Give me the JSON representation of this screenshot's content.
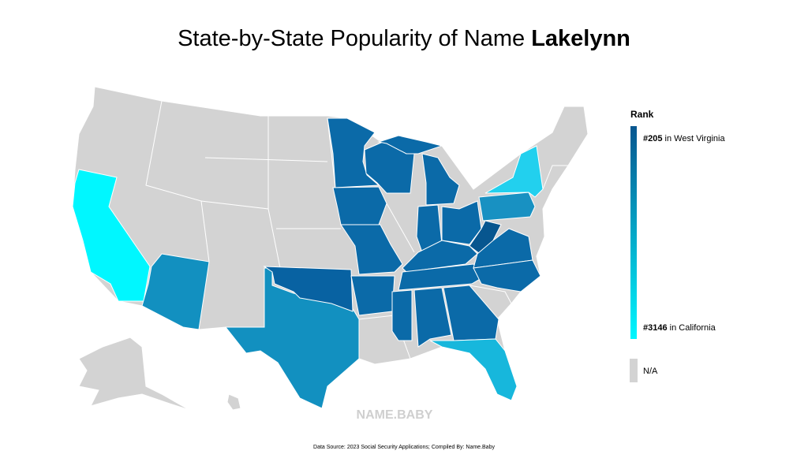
{
  "title": {
    "prefix": "State-by-State Popularity of Name",
    "name": "Lakelynn"
  },
  "legend": {
    "heading": "Rank",
    "top": {
      "rank": "#205",
      "place": "in West Virginia",
      "color": "#07568f"
    },
    "bottom": {
      "rank": "#3146",
      "place": "in California",
      "color": "#00f7ff"
    },
    "na": {
      "label": "N/A",
      "color": "#d3d3d3"
    }
  },
  "watermark": "NAME.BABY",
  "source": "Data Source: 2023 Social Security Applications; Compiled By: Name.Baby",
  "regions": [
    "#00f7ff",
    "#1290c0",
    "#1290c0",
    "#0862a2",
    "#0b6aa8",
    "#0b6aa8",
    "#0b6aa8",
    "#0b6aa8",
    "#0b6aa8",
    "#0b6aa8",
    "#0b6aa8",
    "#0b6aa8",
    "#0b6aa8",
    "#0b6aa8",
    "#0b6aa8",
    "#07568f",
    "#0b6aa8",
    "#0b6aa8",
    "#1891c2",
    "#22d0ee",
    "#0b6aa8",
    "#0b6aa8",
    "#0b6aa8",
    "#17b7dc"
  ]
}
